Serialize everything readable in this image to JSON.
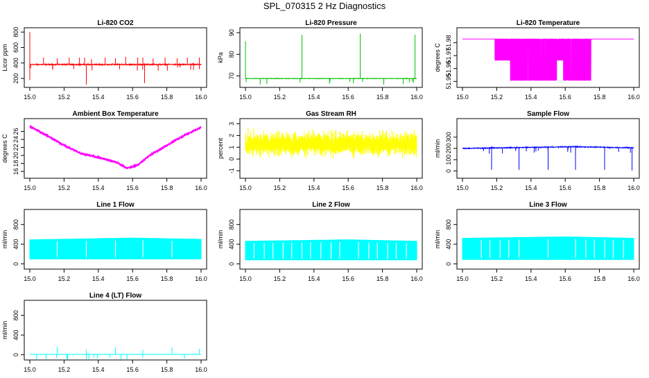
{
  "figure_title": "SPL_070315  2 Hz Diagnostics",
  "chart_data": [
    {
      "type": "line",
      "title": "Li-820 CO2",
      "xlabel": "",
      "ylabel": "Licor ppm",
      "color": "#ff0000",
      "xlim": [
        15.0,
        16.0
      ],
      "ylim": [
        120,
        820
      ],
      "xticks": [
        15.0,
        15.2,
        15.4,
        15.6,
        15.8,
        16.0
      ],
      "yticks": [
        200,
        400,
        600,
        800
      ],
      "signal": {
        "kind": "baseline_spikes",
        "base": 380,
        "noise": 10,
        "spikes": [
          [
            15.0,
            800
          ],
          [
            15.0,
            180
          ],
          [
            15.08,
            470
          ],
          [
            15.16,
            460
          ],
          [
            15.23,
            470
          ],
          [
            15.29,
            470
          ],
          [
            15.32,
            470
          ],
          [
            15.33,
            120
          ],
          [
            15.36,
            450
          ],
          [
            15.44,
            470
          ],
          [
            15.5,
            460
          ],
          [
            15.56,
            480
          ],
          [
            15.63,
            470
          ],
          [
            15.66,
            470
          ],
          [
            15.67,
            140
          ],
          [
            15.72,
            460
          ],
          [
            15.79,
            470
          ],
          [
            15.86,
            460
          ],
          [
            15.92,
            470
          ],
          [
            15.99,
            470
          ],
          [
            15.99,
            320
          ]
        ]
      }
    },
    {
      "type": "line",
      "title": "Li-820 Pressure",
      "xlabel": "",
      "ylabel": "kPa",
      "color": "#00c000",
      "xlim": [
        15.0,
        16.0
      ],
      "ylim": [
        66,
        91
      ],
      "xticks": [
        15.0,
        15.2,
        15.4,
        15.6,
        15.8,
        16.0
      ],
      "yticks": [
        70,
        80,
        90
      ],
      "signal": {
        "kind": "baseline_spikes",
        "base": 68.8,
        "noise": 0.15,
        "spikes": [
          [
            15.0,
            86
          ],
          [
            15.0,
            79
          ],
          [
            15.33,
            89
          ],
          [
            15.67,
            89.5
          ],
          [
            15.67,
            87
          ],
          [
            15.99,
            89
          ]
        ]
      }
    },
    {
      "type": "line",
      "title": "Li-820 Temperature",
      "xlabel": "",
      "ylabel": "degrees C",
      "color": "#ff00ff",
      "xlim": [
        15.0,
        16.0
      ],
      "ylim": [
        51.9475,
        51.9895
      ],
      "xticks": [
        15.0,
        15.2,
        15.4,
        15.6,
        15.8,
        16.0
      ],
      "yticks": [
        51.95,
        51.96,
        51.97,
        51.98
      ],
      "signal": {
        "kind": "quantized",
        "levels": [
          51.9509,
          51.9665,
          51.9829
        ],
        "segments": [
          [
            15.0,
            15.19,
            2
          ],
          [
            15.19,
            15.28,
            1
          ],
          [
            15.28,
            15.55,
            0
          ],
          [
            15.55,
            15.59,
            1
          ],
          [
            15.59,
            15.68,
            0
          ],
          [
            15.68,
            15.75,
            0
          ],
          [
            15.75,
            16.0,
            2
          ]
        ]
      }
    },
    {
      "type": "line",
      "title": "Ambient Box Temperature",
      "xlabel": "",
      "ylabel": "degrees C",
      "color": "#ff00ff",
      "xlim": [
        15.0,
        16.0
      ],
      "ylim": [
        15,
        28.5
      ],
      "xticks": [
        15.0,
        15.2,
        15.4,
        15.6,
        15.8,
        16.0
      ],
      "yticks": [
        16,
        18,
        20,
        22,
        24,
        26
      ],
      "signal": {
        "kind": "trend",
        "noise": 0.55,
        "points": [
          [
            15.0,
            27.2
          ],
          [
            15.1,
            25.0
          ],
          [
            15.2,
            22.5
          ],
          [
            15.3,
            20.5
          ],
          [
            15.4,
            19.5
          ],
          [
            15.5,
            18.4
          ],
          [
            15.57,
            16.8
          ],
          [
            15.63,
            17.6
          ],
          [
            15.7,
            20.0
          ],
          [
            15.8,
            22.5
          ],
          [
            15.9,
            25.0
          ],
          [
            16.0,
            27.0
          ]
        ]
      }
    },
    {
      "type": "line",
      "title": "Gas Stream RH",
      "xlabel": "",
      "ylabel": "percent",
      "color": "#ffff00",
      "xlim": [
        15.0,
        16.0
      ],
      "ylim": [
        -1.4,
        3.2
      ],
      "xticks": [
        15.0,
        15.2,
        15.4,
        15.6,
        15.8,
        16.0
      ],
      "yticks": [
        -1,
        0,
        1,
        2,
        3
      ],
      "signal": {
        "kind": "band",
        "center": 1.3,
        "spread": 1.0,
        "min": -1.2,
        "max": 2.9
      }
    },
    {
      "type": "line",
      "title": "Sample Flow",
      "xlabel": "",
      "ylabel": "ml/min",
      "color": "#0000ff",
      "xlim": [
        15.0,
        16.0
      ],
      "ylim": [
        -40,
        440
      ],
      "xticks": [
        15.0,
        15.2,
        15.4,
        15.6,
        15.8,
        16.0
      ],
      "yticks": [
        0,
        100,
        200,
        300
      ],
      "signal": {
        "kind": "baseline_spikes",
        "base": 205,
        "noise": 6,
        "drift": [
          [
            15.0,
            200
          ],
          [
            15.66,
            215
          ],
          [
            16.0,
            205
          ]
        ],
        "spikes": [
          [
            15.17,
            10
          ],
          [
            15.17,
            220
          ],
          [
            15.33,
            10
          ],
          [
            15.5,
            10
          ],
          [
            15.5,
            220
          ],
          [
            15.66,
            10
          ],
          [
            15.66,
            225
          ],
          [
            15.83,
            10
          ],
          [
            15.99,
            5
          ]
        ]
      }
    },
    {
      "type": "area",
      "title": "Line 1 Flow",
      "xlabel": "",
      "ylabel": "ml/min",
      "color": "#00ffff",
      "xlim": [
        15.0,
        16.0
      ],
      "ylim": [
        -50,
        1050
      ],
      "xticks": [
        15.0,
        15.2,
        15.4,
        15.6,
        15.8,
        16.0
      ],
      "yticks": [
        0,
        400,
        800
      ],
      "signal": {
        "kind": "fill",
        "top": [
          [
            15.0,
            490
          ],
          [
            15.6,
            525
          ],
          [
            16.0,
            500
          ]
        ],
        "bottom": 100,
        "gaps": [
          15.16,
          15.33,
          15.5,
          15.66,
          15.83
        ]
      }
    },
    {
      "type": "area",
      "title": "Line 2 Flow",
      "xlabel": "",
      "ylabel": "ml/min",
      "color": "#00ffff",
      "xlim": [
        15.0,
        16.0
      ],
      "ylim": [
        -50,
        1050
      ],
      "xticks": [
        15.0,
        15.2,
        15.4,
        15.6,
        15.8,
        16.0
      ],
      "yticks": [
        0,
        400,
        800
      ],
      "signal": {
        "kind": "fill",
        "top": [
          [
            15.0,
            460
          ],
          [
            15.6,
            490
          ],
          [
            16.0,
            460
          ]
        ],
        "bottom": 80,
        "gaps": [
          15.05,
          15.11,
          15.16,
          15.22,
          15.27,
          15.33,
          15.38,
          15.44,
          15.5,
          15.55,
          15.66,
          15.72,
          15.77,
          15.83,
          15.88,
          15.94
        ]
      }
    },
    {
      "type": "area",
      "title": "Line 3 Flow",
      "xlabel": "",
      "ylabel": "ml/min",
      "color": "#00ffff",
      "xlim": [
        15.0,
        16.0
      ],
      "ylim": [
        -50,
        1050
      ],
      "xticks": [
        15.0,
        15.2,
        15.4,
        15.6,
        15.8,
        16.0
      ],
      "yticks": [
        0,
        400,
        800
      ],
      "signal": {
        "kind": "fill",
        "top": [
          [
            15.0,
            520
          ],
          [
            15.6,
            550
          ],
          [
            16.0,
            520
          ]
        ],
        "bottom": 90,
        "gaps": [
          15.11,
          15.16,
          15.22,
          15.27,
          15.33,
          15.5,
          15.66,
          15.72,
          15.77,
          15.83,
          15.88,
          15.94
        ]
      }
    },
    {
      "type": "line",
      "title": "Line 4 (LT) Flow",
      "xlabel": "",
      "ylabel": "ml/min",
      "color": "#00ffff",
      "xlim": [
        15.0,
        16.0
      ],
      "ylim": [
        -50,
        1050
      ],
      "xticks": [
        15.0,
        15.2,
        15.4,
        15.6,
        15.8,
        16.0
      ],
      "yticks": [
        0,
        400,
        800
      ],
      "signal": {
        "kind": "baseline_spikes",
        "base": 8,
        "noise": 2,
        "spikes": [
          [
            15.16,
            160
          ],
          [
            15.33,
            100
          ],
          [
            15.5,
            150
          ],
          [
            15.66,
            100
          ],
          [
            15.83,
            150
          ],
          [
            15.99,
            120
          ]
        ]
      }
    }
  ]
}
